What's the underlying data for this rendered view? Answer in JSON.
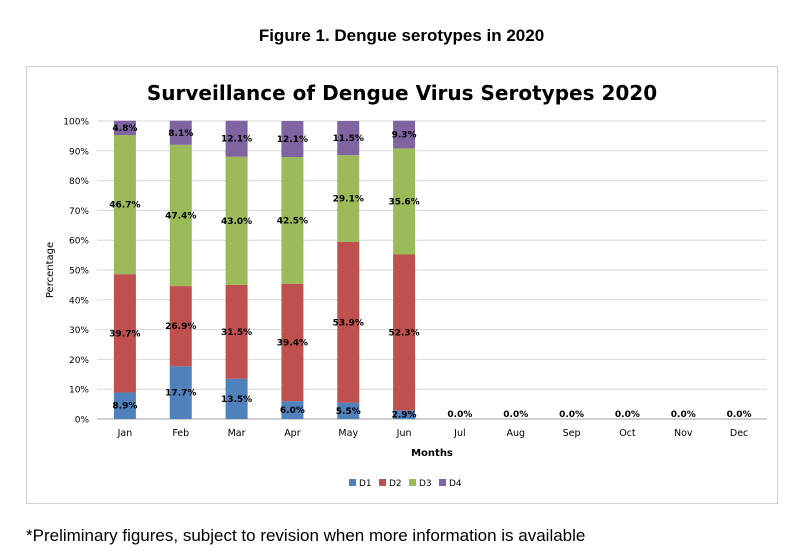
{
  "figure_title": "Figure 1. Dengue serotypes in 2020",
  "footnote": "*Preliminary figures, subject to revision when more information is available",
  "chart_data": {
    "type": "bar",
    "stacked": "percent",
    "title": "Surveillance of Dengue Virus Serotypes 2020",
    "xlabel": "Months",
    "ylabel": "Percentage",
    "categories": [
      "Jan",
      "Feb",
      "Mar",
      "Apr",
      "May",
      "Jun",
      "Jul",
      "Aug",
      "Sep",
      "Oct",
      "Nov",
      "Dec"
    ],
    "ylim": [
      0,
      100
    ],
    "yticks": [
      "0%",
      "10%",
      "20%",
      "30%",
      "40%",
      "50%",
      "60%",
      "70%",
      "80%",
      "90%",
      "100%"
    ],
    "grid": true,
    "legend_position": "bottom",
    "series": [
      {
        "name": "D1",
        "color": "#4f81bd",
        "values": [
          8.9,
          17.7,
          13.5,
          6.0,
          5.5,
          2.9,
          0,
          0,
          0,
          0,
          0,
          0
        ],
        "labels": [
          "8.9%",
          "17.7%",
          "13.5%",
          "6.0%",
          "5.5%",
          "2.9%",
          "0.0%",
          "0.0%",
          "0.0%",
          "0.0%",
          "0.0%",
          "0.0%"
        ]
      },
      {
        "name": "D2",
        "color": "#c0504d",
        "values": [
          39.7,
          26.9,
          31.5,
          39.4,
          53.9,
          52.3,
          0,
          0,
          0,
          0,
          0,
          0
        ],
        "labels": [
          "39.7%",
          "26.9%",
          "31.5%",
          "39.4%",
          "53.9%",
          "52.3%",
          "",
          "",
          "",
          "",
          "",
          ""
        ]
      },
      {
        "name": "D3",
        "color": "#9bbb59",
        "values": [
          46.7,
          47.4,
          43.0,
          42.5,
          29.1,
          35.6,
          0,
          0,
          0,
          0,
          0,
          0
        ],
        "labels": [
          "46.7%",
          "47.4%",
          "43.0%",
          "42.5%",
          "29.1%",
          "35.6%",
          "",
          "",
          "",
          "",
          "",
          ""
        ]
      },
      {
        "name": "D4",
        "color": "#8064a2",
        "values": [
          4.8,
          8.1,
          12.1,
          12.1,
          11.5,
          9.3,
          0,
          0,
          0,
          0,
          0,
          0
        ],
        "labels": [
          "4.8%",
          "8.1%",
          "12.1%",
          "12.1%",
          "11.5%",
          "9.3%",
          "",
          "",
          "",
          "",
          "",
          ""
        ]
      }
    ]
  }
}
